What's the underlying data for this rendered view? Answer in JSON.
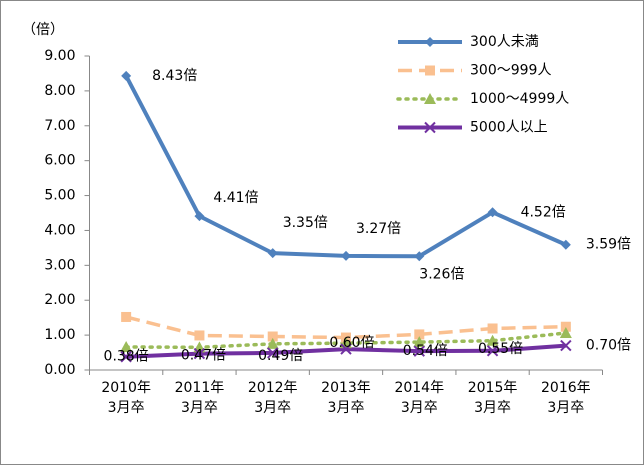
{
  "chart_data": {
    "type": "line",
    "y_axis_label": "（倍）",
    "categories": [
      "2010年\n3月卒",
      "2011年\n3月卒",
      "2012年\n3月卒",
      "2013年\n3月卒",
      "2014年\n3月卒",
      "2015年\n3月卒",
      "2016年\n3月卒"
    ],
    "ylim": [
      0,
      9
    ],
    "yticks": [
      {
        "value": 0,
        "label": "0.00"
      },
      {
        "value": 1,
        "label": "1.00"
      },
      {
        "value": 2,
        "label": "2.00"
      },
      {
        "value": 3,
        "label": "3.00"
      },
      {
        "value": 4,
        "label": "4.00"
      },
      {
        "value": 5,
        "label": "5.00"
      },
      {
        "value": 6,
        "label": "6.00"
      },
      {
        "value": 7,
        "label": "7.00"
      },
      {
        "value": 8,
        "label": "8.00"
      },
      {
        "value": 9,
        "label": "9.00"
      }
    ],
    "grid": false,
    "legend": "upper right",
    "series": [
      {
        "name": "300人未満",
        "color": "#4f81bd",
        "line_style": "solid",
        "marker": "diamond",
        "values": [
          8.43,
          4.41,
          3.35,
          3.27,
          3.26,
          4.52,
          3.59
        ],
        "value_labels": [
          "8.43倍",
          "4.41倍",
          "3.35倍",
          "3.27倍",
          "3.26倍",
          "4.52倍",
          "3.59倍"
        ]
      },
      {
        "name": "300〜999人",
        "color": "#fac090",
        "line_style": "dashed",
        "marker": "square",
        "values": [
          1.52,
          0.99,
          0.96,
          0.93,
          1.02,
          1.19,
          1.24
        ]
      },
      {
        "name": "1000〜4999人",
        "color": "#9bbb59",
        "line_style": "dotted",
        "marker": "triangle",
        "values": [
          0.66,
          0.65,
          0.75,
          0.77,
          0.8,
          0.84,
          1.06
        ]
      },
      {
        "name": "5000人以上",
        "color": "#7030a0",
        "line_style": "solid",
        "marker": "x",
        "values": [
          0.38,
          0.47,
          0.49,
          0.6,
          0.54,
          0.55,
          0.7
        ],
        "value_labels": [
          "0.38倍",
          "0.47倍",
          "0.49倍",
          "0.60倍",
          "0.54倍",
          "0.55倍",
          "0.70倍"
        ]
      }
    ]
  }
}
